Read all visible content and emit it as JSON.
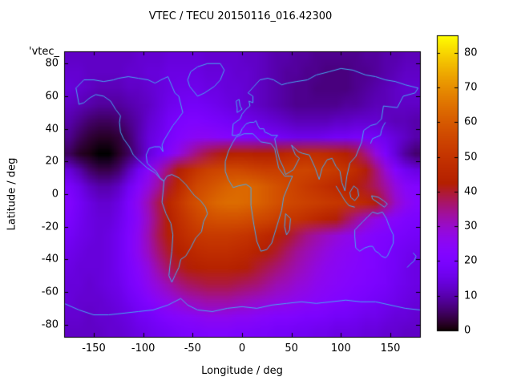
{
  "title": "VTEC / TECU 20150116_016.42300",
  "key_label": "'vtec_",
  "xlabel": "Longitude / deg",
  "ylabel": "Latitude / deg",
  "chart_data": {
    "type": "heatmap",
    "title": "VTEC / TECU 20150116_016.42300",
    "xlabel": "Longitude / deg",
    "ylabel": "Latitude / deg",
    "xlim": [
      -180,
      180
    ],
    "ylim": [
      -87.5,
      87.5
    ],
    "xticks": [
      -150,
      -100,
      -50,
      0,
      50,
      100,
      150
    ],
    "yticks": [
      80,
      60,
      40,
      20,
      0,
      -20,
      -40,
      -60,
      -80
    ],
    "grid": false,
    "colorbar": {
      "ticks": [
        0,
        10,
        20,
        30,
        40,
        50,
        60,
        70,
        80
      ],
      "range": [
        0,
        85
      ],
      "palette": "gnuplot-rgbformulae-7-5-15",
      "low_color": "#000000",
      "mid_color": "#8000ff",
      "high_color": "#ffff00"
    },
    "coastline_color": "#45aaf0",
    "lon_centers": [
      -175,
      -165,
      -155,
      -145,
      -135,
      -125,
      -115,
      -105,
      -95,
      -85,
      -75,
      -65,
      -55,
      -45,
      -35,
      -25,
      -15,
      -5,
      5,
      15,
      25,
      35,
      45,
      55,
      65,
      75,
      85,
      95,
      105,
      115,
      125,
      135,
      145,
      155,
      165,
      175
    ],
    "lat_centers": [
      85,
      75,
      65,
      55,
      45,
      35,
      25,
      15,
      5,
      -5,
      -15,
      -25,
      -35,
      -45,
      -55,
      -65,
      -75,
      -85
    ],
    "values": [
      [
        12,
        12,
        12,
        12,
        12,
        12,
        12,
        13,
        13,
        13,
        14,
        14,
        14,
        14,
        13,
        13,
        13,
        13,
        12,
        12,
        11,
        10,
        10,
        9,
        9,
        8,
        8,
        8,
        8,
        8,
        9,
        9,
        10,
        10,
        11,
        11
      ],
      [
        13,
        13,
        12,
        12,
        12,
        12,
        13,
        13,
        14,
        14,
        15,
        15,
        15,
        15,
        14,
        14,
        14,
        13,
        13,
        12,
        11,
        10,
        9,
        9,
        8,
        8,
        7,
        7,
        7,
        8,
        8,
        9,
        10,
        11,
        12,
        12
      ],
      [
        14,
        13,
        12,
        11,
        11,
        11,
        12,
        12,
        13,
        14,
        15,
        16,
        16,
        16,
        15,
        15,
        14,
        14,
        13,
        12,
        11,
        10,
        9,
        8,
        8,
        7,
        7,
        7,
        7,
        8,
        9,
        10,
        11,
        12,
        13,
        13
      ],
      [
        12,
        11,
        10,
        9,
        9,
        9,
        10,
        11,
        12,
        14,
        16,
        17,
        18,
        18,
        17,
        16,
        15,
        14,
        13,
        12,
        11,
        10,
        9,
        8,
        8,
        8,
        8,
        8,
        9,
        9,
        10,
        11,
        11,
        12,
        12,
        12
      ],
      [
        10,
        8,
        6,
        5,
        5,
        6,
        8,
        10,
        13,
        15,
        18,
        20,
        21,
        21,
        20,
        19,
        18,
        17,
        16,
        15,
        14,
        13,
        12,
        11,
        11,
        11,
        11,
        12,
        12,
        13,
        13,
        13,
        12,
        11,
        11,
        10
      ],
      [
        8,
        5,
        3,
        2,
        2,
        3,
        6,
        10,
        14,
        16,
        19,
        22,
        24,
        25,
        25,
        24,
        23,
        22,
        21,
        20,
        19,
        18,
        17,
        16,
        16,
        16,
        17,
        18,
        18,
        19,
        19,
        18,
        16,
        14,
        12,
        10
      ],
      [
        5,
        2,
        1,
        0,
        0,
        2,
        5,
        9,
        14,
        18,
        22,
        27,
        32,
        36,
        39,
        41,
        43,
        44,
        44,
        43,
        43,
        44,
        46,
        47,
        48,
        48,
        47,
        45,
        43,
        40,
        35,
        28,
        20,
        14,
        9,
        6
      ],
      [
        14,
        10,
        6,
        4,
        4,
        6,
        11,
        17,
        24,
        30,
        36,
        42,
        47,
        51,
        54,
        55,
        56,
        56,
        55,
        54,
        53,
        53,
        54,
        55,
        55,
        54,
        53,
        52,
        50,
        47,
        42,
        36,
        29,
        22,
        17,
        15
      ],
      [
        20,
        16,
        12,
        10,
        10,
        12,
        17,
        23,
        28,
        33,
        40,
        46,
        52,
        56,
        58,
        60,
        62,
        63,
        63,
        62,
        60,
        58,
        56,
        54,
        52,
        50,
        48,
        46,
        44,
        42,
        40,
        37,
        33,
        28,
        24,
        22
      ],
      [
        22,
        18,
        15,
        13,
        13,
        15,
        20,
        26,
        32,
        38,
        45,
        50,
        55,
        58,
        61,
        63,
        64,
        64,
        63,
        62,
        60,
        58,
        56,
        55,
        54,
        53,
        52,
        51,
        50,
        48,
        46,
        42,
        36,
        30,
        26,
        23
      ],
      [
        20,
        17,
        15,
        14,
        14,
        16,
        20,
        25,
        31,
        37,
        43,
        48,
        52,
        55,
        57,
        58,
        58,
        58,
        57,
        56,
        55,
        53,
        51,
        50,
        48,
        46,
        44,
        42,
        38,
        34,
        30,
        27,
        25,
        23,
        21,
        20
      ],
      [
        18,
        16,
        15,
        14,
        15,
        17,
        21,
        26,
        32,
        38,
        42,
        46,
        49,
        51,
        52,
        52,
        52,
        51,
        50,
        48,
        46,
        44,
        41,
        38,
        35,
        33,
        31,
        29,
        27,
        26,
        24,
        22,
        21,
        20,
        19,
        18
      ],
      [
        16,
        15,
        14,
        14,
        15,
        17,
        21,
        26,
        31,
        36,
        40,
        43,
        45,
        47,
        48,
        48,
        48,
        47,
        46,
        44,
        42,
        40,
        37,
        34,
        32,
        30,
        28,
        26,
        25,
        24,
        22,
        21,
        20,
        18,
        17,
        16
      ],
      [
        15,
        14,
        14,
        14,
        15,
        17,
        20,
        24,
        28,
        33,
        37,
        40,
        42,
        43,
        44,
        44,
        44,
        43,
        42,
        40,
        38,
        36,
        34,
        32,
        30,
        28,
        26,
        25,
        24,
        23,
        22,
        21,
        19,
        18,
        16,
        15
      ],
      [
        14,
        14,
        13,
        14,
        15,
        16,
        19,
        22,
        26,
        29,
        32,
        35,
        37,
        38,
        39,
        39,
        39,
        38,
        37,
        36,
        34,
        32,
        31,
        29,
        28,
        26,
        25,
        24,
        23,
        22,
        21,
        20,
        19,
        17,
        16,
        15
      ],
      [
        14,
        13,
        13,
        13,
        14,
        15,
        17,
        19,
        22,
        25,
        27,
        29,
        31,
        32,
        33,
        33,
        33,
        32,
        31,
        30,
        29,
        28,
        27,
        26,
        25,
        24,
        23,
        22,
        21,
        20,
        19,
        18,
        17,
        16,
        15,
        14
      ],
      [
        13,
        13,
        12,
        13,
        13,
        14,
        15,
        17,
        18,
        20,
        22,
        23,
        24,
        25,
        26,
        26,
        26,
        25,
        25,
        24,
        23,
        22,
        22,
        21,
        20,
        20,
        19,
        18,
        18,
        17,
        16,
        16,
        15,
        14,
        14,
        13
      ],
      [
        12,
        12,
        12,
        12,
        13,
        13,
        14,
        15,
        16,
        17,
        18,
        19,
        20,
        20,
        21,
        21,
        21,
        20,
        20,
        19,
        19,
        18,
        18,
        17,
        17,
        16,
        16,
        15,
        15,
        15,
        14,
        14,
        13,
        13,
        12,
        12
      ]
    ],
    "map_outlines": [
      {
        "name": "north-america",
        "closed": true,
        "pts": [
          -168,
          65,
          -160,
          70,
          -150,
          70,
          -140,
          69,
          -130,
          70,
          -125,
          71,
          -115,
          72,
          -105,
          71,
          -95,
          70,
          -88,
          68,
          -82,
          70,
          -75,
          72,
          -68,
          62,
          -64,
          60,
          -60,
          50,
          -66,
          45,
          -70,
          42,
          -74,
          38,
          -79,
          33,
          -81,
          30,
          -80,
          26,
          -83,
          29,
          -89,
          29,
          -94,
          28,
          -97,
          24,
          -96,
          19,
          -91,
          16,
          -87,
          14,
          -83,
          10,
          -79,
          8,
          -82,
          9,
          -88,
          13,
          -96,
          16,
          -105,
          21,
          -110,
          24,
          -114,
          29,
          -120,
          34,
          -123,
          38,
          -124,
          44,
          -123,
          48,
          -128,
          52,
          -133,
          57,
          -140,
          60,
          -148,
          61,
          -154,
          59,
          -160,
          56,
          -165,
          55
        ]
      },
      {
        "name": "greenland",
        "closed": true,
        "pts": [
          -45,
          60,
          -53,
          66,
          -55,
          70,
          -52,
          75,
          -45,
          78,
          -35,
          80,
          -22,
          80,
          -18,
          76,
          -22,
          70,
          -28,
          66,
          -38,
          62
        ]
      },
      {
        "name": "south-america",
        "closed": true,
        "pts": [
          -79,
          8,
          -76,
          11,
          -71,
          12,
          -64,
          10,
          -57,
          6,
          -52,
          2,
          -48,
          -1,
          -42,
          -4,
          -37,
          -8,
          -35,
          -12,
          -39,
          -17,
          -41,
          -23,
          -47,
          -27,
          -52,
          -33,
          -57,
          -38,
          -62,
          -40,
          -64,
          -45,
          -68,
          -50,
          -71,
          -54,
          -74,
          -50,
          -73,
          -44,
          -71,
          -35,
          -70,
          -25,
          -72,
          -18,
          -77,
          -12,
          -81,
          -5,
          -80,
          1
        ]
      },
      {
        "name": "africa",
        "closed": true,
        "pts": [
          -10,
          31,
          -6,
          35,
          2,
          37,
          11,
          37,
          19,
          32,
          29,
          31,
          33,
          28,
          35,
          22,
          37,
          16,
          43,
          11,
          48,
          11,
          51,
          11,
          46,
          4,
          42,
          -2,
          40,
          -10,
          37,
          -16,
          34,
          -22,
          30,
          -30,
          25,
          -34,
          19,
          -35,
          15,
          -29,
          12,
          -19,
          9,
          -7,
          9,
          4,
          4,
          6,
          -4,
          5,
          -9,
          4,
          -14,
          9,
          -17,
          14,
          -17,
          20,
          -14,
          26
        ]
      },
      {
        "name": "eurasia",
        "closed": true,
        "pts": [
          -10,
          36,
          -9,
          43,
          -2,
          46,
          0,
          49,
          4,
          52,
          8,
          54,
          7,
          57,
          11,
          56,
          11,
          60,
          6,
          62,
          12,
          66,
          18,
          70,
          26,
          71,
          32,
          70,
          40,
          67,
          46,
          68,
          55,
          69,
          66,
          70,
          75,
          73,
          88,
          75,
          100,
          77,
          112,
          76,
          125,
          73,
          135,
          72,
          145,
          70,
          155,
          69,
          165,
          67,
          178,
          65,
          175,
          62,
          163,
          60,
          157,
          53,
          143,
          54,
          141,
          46,
          136,
          43,
          130,
          42,
          123,
          39,
          121,
          32,
          115,
          23,
          109,
          19,
          106,
          11,
          104,
          2,
          101,
          7,
          99,
          14,
          95,
          17,
          91,
          22,
          86,
          21,
          81,
          16,
          78,
          9,
          74,
          16,
          68,
          24,
          61,
          25,
          57,
          26,
          50,
          30,
          54,
          24,
          58,
          22,
          52,
          15,
          44,
          12,
          42,
          16,
          38,
          21,
          35,
          28,
          34,
          31,
          33,
          34,
          36,
          36,
          30,
          36,
          27,
          37,
          23,
          38,
          22,
          40,
          18,
          40,
          16,
          42,
          14,
          45,
          12,
          44,
          8,
          44,
          4,
          43,
          0,
          40,
          -2,
          37,
          -6,
          36
        ]
      },
      {
        "name": "australia",
        "closed": true,
        "pts": [
          114,
          -22,
          114,
          -26,
          115,
          -33,
          119,
          -35,
          124,
          -33,
          129,
          -32,
          132,
          -32,
          135,
          -35,
          138,
          -36,
          141,
          -38,
          145,
          -39,
          147,
          -38,
          150,
          -34,
          153,
          -30,
          153,
          -25,
          149,
          -20,
          146,
          -15,
          142,
          -11,
          137,
          -12,
          132,
          -11,
          127,
          -14,
          122,
          -17
        ]
      },
      {
        "name": "antarctica",
        "closed": false,
        "pts": [
          -180,
          -67,
          -165,
          -71,
          -150,
          -74,
          -135,
          -74,
          -120,
          -73,
          -105,
          -72,
          -90,
          -71,
          -75,
          -68,
          -62,
          -64,
          -55,
          -68,
          -45,
          -71,
          -30,
          -72,
          -15,
          -70,
          0,
          -69,
          15,
          -70,
          30,
          -68,
          45,
          -67,
          60,
          -66,
          75,
          -67,
          90,
          -66,
          105,
          -65,
          120,
          -66,
          135,
          -66,
          150,
          -68,
          165,
          -70,
          180,
          -71
        ]
      },
      {
        "name": "madagascar",
        "closed": true,
        "pts": [
          44,
          -12,
          49,
          -15,
          48,
          -22,
          45,
          -25,
          43,
          -20
        ]
      },
      {
        "name": "new-guinea",
        "closed": true,
        "pts": [
          131,
          -1,
          138,
          -2,
          143,
          -4,
          147,
          -6,
          144,
          -8,
          137,
          -5,
          132,
          -3
        ]
      },
      {
        "name": "borneo",
        "closed": true,
        "pts": [
          109,
          1,
          113,
          5,
          117,
          3,
          118,
          -1,
          114,
          -4,
          110,
          -2
        ]
      },
      {
        "name": "sumatra-java",
        "closed": false,
        "pts": [
          95,
          5,
          100,
          0,
          104,
          -4,
          108,
          -7,
          114,
          -8
        ]
      },
      {
        "name": "japan",
        "closed": false,
        "pts": [
          130,
          31,
          132,
          34,
          136,
          35,
          140,
          36,
          141,
          39,
          143,
          42,
          145,
          44
        ]
      },
      {
        "name": "britain",
        "closed": true,
        "pts": [
          -5,
          50,
          -5,
          53,
          -6,
          57,
          -3,
          58,
          -2,
          54,
          0,
          52
        ]
      },
      {
        "name": "new-zealand",
        "closed": false,
        "pts": [
          167,
          -45,
          170,
          -43,
          174,
          -41,
          176,
          -38,
          173,
          -36
        ]
      }
    ]
  }
}
